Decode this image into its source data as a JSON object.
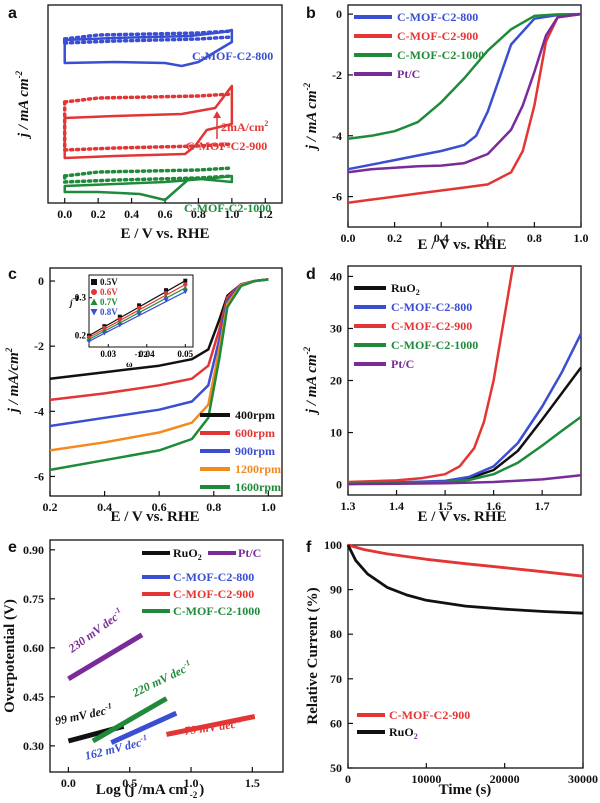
{
  "panels": {
    "a": {
      "label": "a",
      "xlabel": "E / V vs. RHE",
      "ylabel": "j / mA cm",
      "ylabel_sup": "-2",
      "xticks": [
        "0.0",
        "0.2",
        "0.4",
        "0.6",
        "0.8",
        "1.0",
        "1.2"
      ],
      "curve_labels": [
        "C-MOF-C2-800",
        "C-MOF-C2-900",
        "C-MOF-C2-1000"
      ],
      "scale_bar_label": "2mA/cm",
      "scale_bar_sup": "2"
    },
    "b": {
      "label": "b",
      "xlabel": "E / V vs. RHE",
      "ylabel": "j / mA cm",
      "ylabel_sup": "-2",
      "xticks": [
        "0.0",
        "0.2",
        "0.4",
        "0.6",
        "0.8",
        "1.0"
      ],
      "yticks": [
        "0",
        "-2",
        "-4",
        "-6"
      ],
      "legend": [
        "C-MOF-C2-800",
        "C-MOF-C2-900",
        "C-MOF-C2-1000",
        "Pt/C"
      ]
    },
    "c": {
      "label": "c",
      "xlabel": "E / V vs. RHE",
      "ylabel": "j / mA/cm",
      "ylabel_sup": "2",
      "xticks": [
        "0.2",
        "0.4",
        "0.6",
        "0.8",
        "1.0"
      ],
      "yticks": [
        "0",
        "-2",
        "-4",
        "-6"
      ],
      "legend": [
        "400rpm",
        "600rpm",
        "900rpm",
        "1200rpm",
        "1600rpm"
      ],
      "inset": {
        "ylabel": "j",
        "ylabel_sup": "-1",
        "xlabel": "ω",
        "xlabel_sup": "-1/2",
        "xticks": [
          "0.03",
          "0.04",
          "0.05"
        ],
        "yticks": [
          "0.3",
          "0.2"
        ],
        "legend": [
          "0.5V",
          "0.6V",
          "0.7V",
          "0.8V"
        ]
      }
    },
    "d": {
      "label": "d",
      "xlabel": "E / V vs. RHE",
      "ylabel": "j / mA cm",
      "ylabel_sup": "-2",
      "xticks": [
        "1.3",
        "1.4",
        "1.5",
        "1.6",
        "1.7"
      ],
      "yticks": [
        "0",
        "10",
        "20",
        "30",
        "40"
      ],
      "legend": [
        "RuO",
        "C-MOF-C2-800",
        "C-MOF-C2-900",
        "C-MOF-C2-1000",
        "Pt/C"
      ],
      "legend_sub": "2"
    },
    "e": {
      "label": "e",
      "xlabel": "Log (j /mA cm",
      "xlabel_sup": "-2",
      "xlabel_end": ")",
      "ylabel": "Overpotential (V)",
      "xticks": [
        "0.0",
        "0.5",
        "1.0",
        "1.5"
      ],
      "yticks": [
        "0.30",
        "0.45",
        "0.60",
        "0.75",
        "0.90"
      ],
      "legend": [
        "RuO",
        "Pt/C",
        "C-MOF-C2-800",
        "C-MOF-C2-900",
        "C-MOF-C2-1000"
      ],
      "legend_sub": "2",
      "tafel_labels": [
        "230 mV dec",
        "99 mV dec",
        "220 mV dec",
        "162 mV dec",
        "79 mV dec"
      ],
      "tafel_sup": "-1"
    },
    "f": {
      "label": "f",
      "xlabel": "Time (s)",
      "ylabel": "Relative Current (%)",
      "xticks": [
        "0",
        "10000",
        "20000",
        "30000"
      ],
      "yticks": [
        "50",
        "60",
        "70",
        "80",
        "90",
        "100"
      ],
      "legend": [
        "C-MOF-C2-900",
        "RuO"
      ],
      "legend_sub": "2"
    }
  },
  "chart_data": [
    {
      "id": "a",
      "type": "line",
      "title": "",
      "xlabel": "E / V vs. RHE",
      "ylabel": "j / mA cm-2",
      "xlim": [
        -0.1,
        1.3
      ],
      "yaxis": "offset, unlabeled (scale bar 2 mA/cm2)",
      "series": [
        {
          "name": "C-MOF-C2-800",
          "color": "#3a4ed1",
          "offset_level": 3
        },
        {
          "name": "C-MOF-C2-900",
          "color": "#e43535",
          "offset_level": 2
        },
        {
          "name": "C-MOF-C2-1000",
          "color": "#1f8b3a",
          "offset_level": 1
        }
      ]
    },
    {
      "id": "b",
      "type": "line",
      "xlabel": "E / V vs. RHE",
      "ylabel": "j / mA cm-2",
      "xlim": [
        0,
        1.0
      ],
      "ylim": [
        -7,
        0.3
      ],
      "series": [
        {
          "name": "C-MOF-C2-800",
          "color": "#3a4ed1",
          "x": [
            0,
            0.1,
            0.2,
            0.3,
            0.4,
            0.5,
            0.55,
            0.6,
            0.65,
            0.7,
            0.8,
            0.9,
            1.0
          ],
          "y": [
            -5.1,
            -4.95,
            -4.8,
            -4.65,
            -4.5,
            -4.3,
            -4.0,
            -3.2,
            -2.1,
            -1.0,
            -0.15,
            -0.03,
            0
          ]
        },
        {
          "name": "C-MOF-C2-900",
          "color": "#e43535",
          "x": [
            0,
            0.1,
            0.2,
            0.3,
            0.4,
            0.5,
            0.6,
            0.7,
            0.75,
            0.8,
            0.85,
            0.9,
            1.0
          ],
          "y": [
            -6.2,
            -6.1,
            -6.0,
            -5.9,
            -5.8,
            -5.7,
            -5.6,
            -5.2,
            -4.5,
            -3.0,
            -0.9,
            -0.1,
            0
          ]
        },
        {
          "name": "C-MOF-C2-1000",
          "color": "#1f8b3a",
          "x": [
            0,
            0.1,
            0.2,
            0.3,
            0.4,
            0.5,
            0.6,
            0.7,
            0.8,
            0.9,
            1.0
          ],
          "y": [
            -4.1,
            -4.0,
            -3.85,
            -3.55,
            -2.9,
            -2.1,
            -1.2,
            -0.5,
            -0.06,
            -0.01,
            0
          ]
        },
        {
          "name": "Pt/C",
          "color": "#7a2b9a",
          "x": [
            0,
            0.1,
            0.2,
            0.3,
            0.4,
            0.5,
            0.6,
            0.7,
            0.75,
            0.8,
            0.85,
            0.9,
            1.0
          ],
          "y": [
            -5.2,
            -5.1,
            -5.05,
            -5.0,
            -4.98,
            -4.9,
            -4.6,
            -3.8,
            -3.0,
            -1.9,
            -0.7,
            -0.1,
            0
          ]
        }
      ]
    },
    {
      "id": "c",
      "type": "line",
      "xlabel": "E / V vs. RHE",
      "ylabel": "j / mA/cm2",
      "xlim": [
        0.2,
        1.05
      ],
      "ylim": [
        -6.6,
        0.4
      ],
      "series": [
        {
          "name": "400rpm",
          "color": "#111111",
          "x": [
            0.2,
            0.4,
            0.6,
            0.72,
            0.78,
            0.82,
            0.85,
            0.9,
            0.95,
            1.0
          ],
          "y": [
            -3.0,
            -2.8,
            -2.6,
            -2.4,
            -2.1,
            -1.2,
            -0.45,
            -0.1,
            0,
            0.05
          ]
        },
        {
          "name": "600rpm",
          "color": "#e43535",
          "x": [
            0.2,
            0.4,
            0.6,
            0.72,
            0.78,
            0.82,
            0.85,
            0.9,
            0.95,
            1.0
          ],
          "y": [
            -3.65,
            -3.45,
            -3.2,
            -3.0,
            -2.6,
            -1.5,
            -0.5,
            -0.1,
            0,
            0.05
          ]
        },
        {
          "name": "900rpm",
          "color": "#3a4ed1",
          "x": [
            0.2,
            0.4,
            0.6,
            0.72,
            0.78,
            0.82,
            0.85,
            0.9,
            0.95,
            1.0
          ],
          "y": [
            -4.45,
            -4.2,
            -3.95,
            -3.7,
            -3.2,
            -1.8,
            -0.6,
            -0.1,
            0,
            0.05
          ]
        },
        {
          "name": "1200rpm",
          "color": "#f28a1e",
          "x": [
            0.2,
            0.4,
            0.6,
            0.72,
            0.78,
            0.82,
            0.85,
            0.9,
            0.95,
            1.0
          ],
          "y": [
            -5.2,
            -4.95,
            -4.65,
            -4.35,
            -3.8,
            -2.1,
            -0.7,
            -0.12,
            0,
            0.05
          ]
        },
        {
          "name": "1600rpm",
          "color": "#1f8b3a",
          "x": [
            0.2,
            0.4,
            0.6,
            0.72,
            0.78,
            0.82,
            0.85,
            0.9,
            0.95,
            1.0
          ],
          "y": [
            -5.8,
            -5.5,
            -5.2,
            -4.85,
            -4.2,
            -2.4,
            -0.8,
            -0.15,
            0,
            0.05
          ]
        }
      ],
      "inset": {
        "type": "scatter",
        "xlabel": "ω-1/2",
        "ylabel": "j-1",
        "xlim": [
          0.025,
          0.052
        ],
        "ylim": [
          0.17,
          0.36
        ],
        "series": [
          {
            "name": "0.5V",
            "color": "#111111",
            "x": [
              0.025,
              0.029,
              0.033,
              0.038,
              0.045,
              0.05
            ],
            "y": [
              0.2,
              0.225,
              0.25,
              0.28,
              0.32,
              0.345
            ]
          },
          {
            "name": "0.6V",
            "color": "#e43535",
            "x": [
              0.025,
              0.029,
              0.033,
              0.038,
              0.045,
              0.05
            ],
            "y": [
              0.195,
              0.22,
              0.243,
              0.273,
              0.312,
              0.335
            ]
          },
          {
            "name": "0.7V",
            "color": "#1f8b3a",
            "x": [
              0.025,
              0.029,
              0.033,
              0.038,
              0.045,
              0.05
            ],
            "y": [
              0.19,
              0.213,
              0.235,
              0.265,
              0.303,
              0.326
            ]
          },
          {
            "name": "0.8V",
            "color": "#3a4ed1",
            "x": [
              0.025,
              0.029,
              0.033,
              0.038,
              0.045,
              0.05
            ],
            "y": [
              0.185,
              0.207,
              0.228,
              0.256,
              0.294,
              0.316
            ]
          }
        ]
      }
    },
    {
      "id": "d",
      "type": "line",
      "xlabel": "E / V vs. RHE",
      "ylabel": "j / mA cm-2",
      "xlim": [
        1.3,
        1.78
      ],
      "ylim": [
        -2,
        42
      ],
      "series": [
        {
          "name": "RuO2",
          "color": "#111111",
          "x": [
            1.3,
            1.4,
            1.5,
            1.55,
            1.6,
            1.65,
            1.7,
            1.74,
            1.78
          ],
          "y": [
            0.3,
            0.4,
            0.6,
            1.2,
            2.8,
            6.5,
            12.5,
            17.5,
            22.5
          ]
        },
        {
          "name": "C-MOF-C2-800",
          "color": "#3a4ed1",
          "x": [
            1.3,
            1.4,
            1.5,
            1.55,
            1.6,
            1.65,
            1.7,
            1.74,
            1.78
          ],
          "y": [
            0.3,
            0.4,
            0.7,
            1.5,
            3.5,
            8.0,
            15.0,
            21.5,
            29.0
          ]
        },
        {
          "name": "C-MOF-C2-900",
          "color": "#e43535",
          "x": [
            1.3,
            1.4,
            1.45,
            1.5,
            1.53,
            1.56,
            1.58,
            1.6,
            1.62,
            1.64
          ],
          "y": [
            0.5,
            0.8,
            1.2,
            2.0,
            3.5,
            7.0,
            12.0,
            20.0,
            31.0,
            42.0
          ]
        },
        {
          "name": "C-MOF-C2-1000",
          "color": "#1f8b3a",
          "x": [
            1.3,
            1.4,
            1.5,
            1.55,
            1.6,
            1.65,
            1.7,
            1.74,
            1.78
          ],
          "y": [
            0.2,
            0.3,
            0.5,
            0.9,
            2.0,
            4.2,
            7.5,
            10.3,
            13.0
          ]
        },
        {
          "name": "Pt/C",
          "color": "#7a2b9a",
          "x": [
            1.3,
            1.4,
            1.5,
            1.6,
            1.7,
            1.78
          ],
          "y": [
            0.1,
            0.15,
            0.25,
            0.5,
            1.0,
            1.8
          ]
        }
      ]
    },
    {
      "id": "e",
      "type": "line",
      "xlabel": "Log (j /mA cm-2)",
      "ylabel": "Overpotential (V)",
      "xlim": [
        -0.15,
        1.75
      ],
      "ylim": [
        0.22,
        0.93
      ],
      "series": [
        {
          "name": "RuO2",
          "color": "#111111",
          "x": [
            0.0,
            0.45
          ],
          "y": [
            0.315,
            0.36
          ],
          "slope_label": "99 mV dec-1"
        },
        {
          "name": "Pt/C",
          "color": "#7a2b9a",
          "x": [
            0.0,
            0.6
          ],
          "y": [
            0.505,
            0.64
          ],
          "slope_label": "230 mV dec-1"
        },
        {
          "name": "C-MOF-C2-800",
          "color": "#3a4ed1",
          "x": [
            0.35,
            0.88
          ],
          "y": [
            0.31,
            0.4
          ],
          "slope_label": "162 mV dec-1"
        },
        {
          "name": "C-MOF-C2-900",
          "color": "#e43535",
          "x": [
            0.8,
            1.52
          ],
          "y": [
            0.335,
            0.39
          ],
          "slope_label": "79 mV dec-1"
        },
        {
          "name": "C-MOF-C2-1000",
          "color": "#1f8b3a",
          "x": [
            0.2,
            0.8
          ],
          "y": [
            0.315,
            0.445
          ],
          "slope_label": "220 mV dec-1"
        }
      ]
    },
    {
      "id": "f",
      "type": "line",
      "xlabel": "Time (s)",
      "ylabel": "Relative Current (%)",
      "xlim": [
        0,
        30000
      ],
      "ylim": [
        50,
        100
      ],
      "series": [
        {
          "name": "C-MOF-C2-900",
          "color": "#e43535",
          "x": [
            0,
            2000,
            5000,
            10000,
            15000,
            20000,
            25000,
            30000
          ],
          "y": [
            100,
            99.0,
            98.0,
            96.8,
            95.8,
            94.9,
            94.0,
            93.0
          ]
        },
        {
          "name": "RuO2",
          "color": "#111111",
          "x": [
            0,
            1000,
            2500,
            5000,
            7500,
            10000,
            15000,
            20000,
            25000,
            30000
          ],
          "y": [
            100,
            96.5,
            93.5,
            90.5,
            88.8,
            87.6,
            86.3,
            85.6,
            85.1,
            84.7
          ]
        }
      ]
    }
  ]
}
